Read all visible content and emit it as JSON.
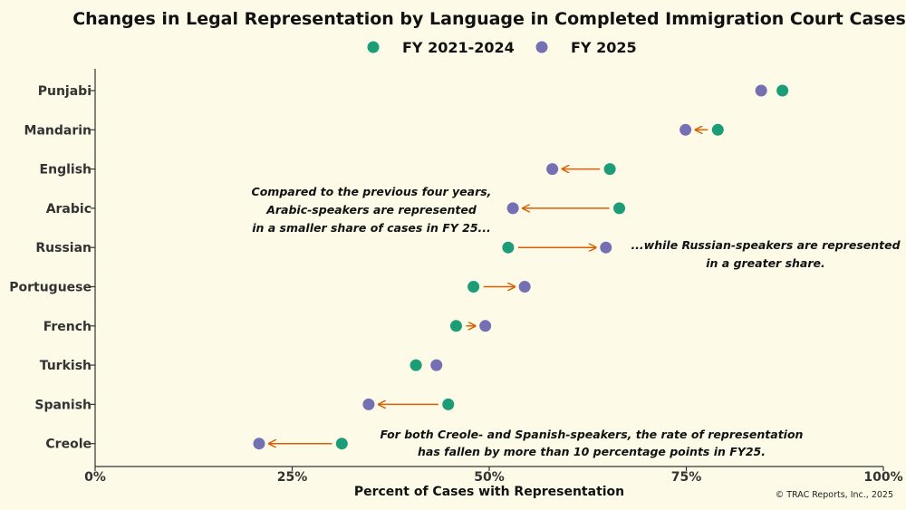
{
  "chart_data": {
    "type": "dumbbell",
    "title": "Changes in Legal Representation by Language in Completed Immigration Court Cases",
    "xlabel": "Percent of Cases with Representation",
    "ylabel": "",
    "xlim": [
      0,
      100
    ],
    "ticks": [
      {
        "value": 0,
        "label": "0%"
      },
      {
        "value": 25,
        "label": "25%"
      },
      {
        "value": 50,
        "label": "50%"
      },
      {
        "value": 75,
        "label": "75%"
      },
      {
        "value": 100,
        "label": "100%"
      }
    ],
    "categories": [
      "Punjabi",
      "Mandarin",
      "English",
      "Arabic",
      "Russian",
      "Portuguese",
      "French",
      "Turkish",
      "Spanish",
      "Creole"
    ],
    "series": [
      {
        "name": "FY 2021-2024",
        "color": "#1b9e77",
        "values": [
          87.2,
          79.0,
          65.3,
          66.5,
          52.4,
          48.0,
          45.8,
          40.7,
          44.8,
          31.3
        ]
      },
      {
        "name": "FY 2025",
        "color": "#7570b3",
        "values": [
          84.5,
          74.9,
          58.0,
          53.0,
          64.8,
          54.5,
          49.5,
          43.3,
          34.7,
          20.8
        ]
      }
    ],
    "arrow_color": "#d95f02",
    "annotations": [
      {
        "lines": [
          "Compared to the previous four years,",
          "Arabic-speakers are represented",
          "in a smaller share of cases in FY 25..."
        ]
      },
      {
        "lines": [
          "...while Russian-speakers are represented",
          "in a greater share."
        ]
      },
      {
        "lines": [
          "For both Creole- and Spanish-speakers, the rate of representation",
          "has fallen by more than 10 percentage points in FY25."
        ]
      }
    ],
    "credit": "© TRAC Reports, Inc., 2025"
  }
}
